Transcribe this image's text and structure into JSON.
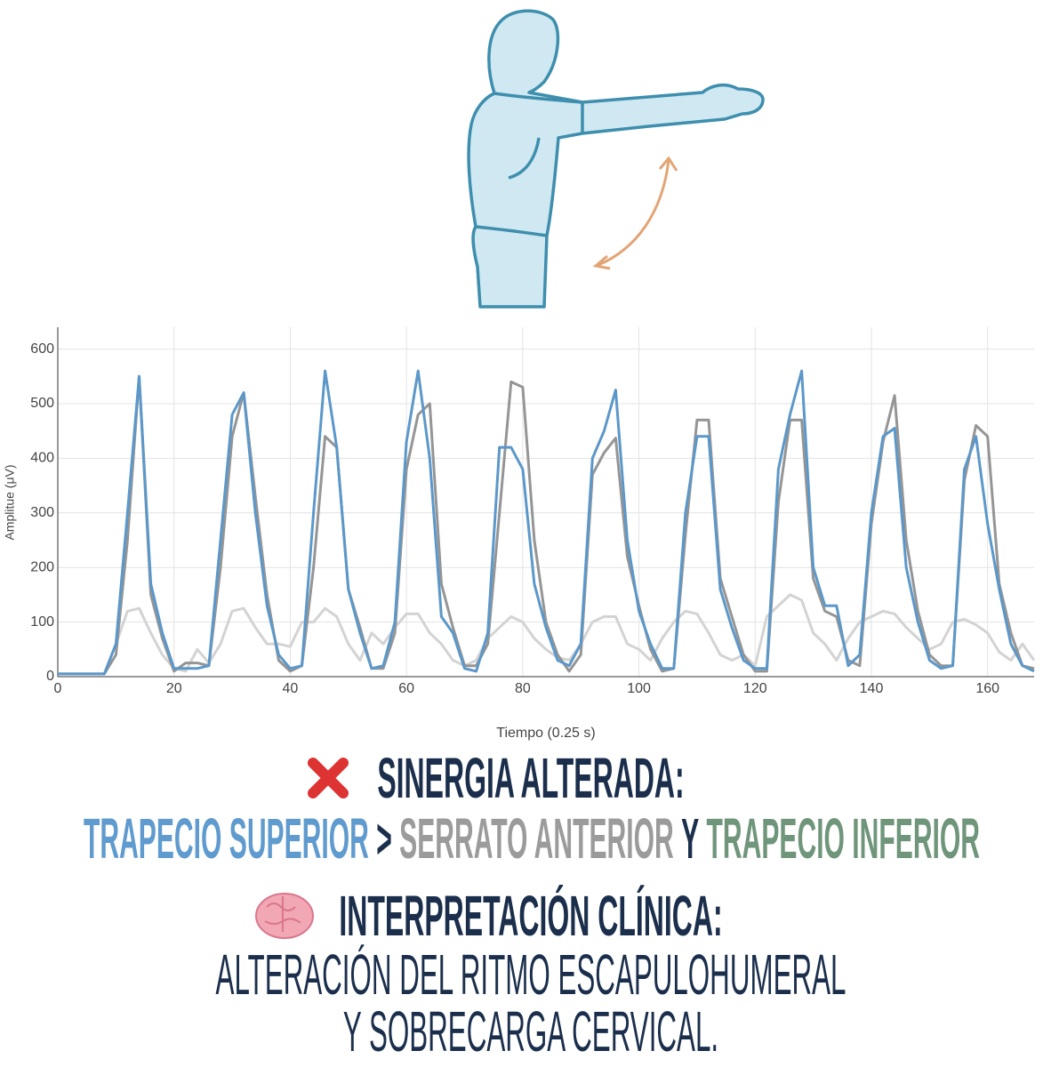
{
  "chart_data": {
    "type": "line",
    "x_label": "Tiempo (0.25 s)",
    "y_label": "Amplitue (μV)",
    "x": [
      0,
      2,
      4,
      6,
      8,
      10,
      12,
      14,
      16,
      18,
      20,
      22,
      24,
      26,
      28,
      30,
      32,
      34,
      36,
      38,
      40,
      42,
      44,
      46,
      48,
      50,
      52,
      54,
      56,
      58,
      60,
      62,
      64,
      66,
      68,
      70,
      72,
      74,
      76,
      78,
      80,
      82,
      84,
      86,
      88,
      90,
      92,
      94,
      96,
      98,
      100,
      102,
      104,
      106,
      108,
      110,
      112,
      114,
      116,
      118,
      120,
      122,
      124,
      126,
      128,
      130,
      132,
      134,
      136,
      138,
      140,
      142,
      144,
      146,
      148,
      150,
      152,
      154,
      156,
      158,
      160,
      162,
      164,
      166,
      168
    ],
    "series": [
      {
        "color": "#5b98c9",
        "values": [
          5,
          5,
          5,
          5,
          5,
          60,
          300,
          550,
          170,
          80,
          15,
          15,
          15,
          20,
          250,
          480,
          520,
          300,
          130,
          40,
          15,
          20,
          300,
          560,
          420,
          160,
          80,
          15,
          20,
          100,
          430,
          560,
          400,
          110,
          80,
          15,
          10,
          80,
          420,
          420,
          380,
          170,
          90,
          30,
          20,
          60,
          400,
          450,
          525,
          250,
          120,
          60,
          15,
          15,
          300,
          440,
          440,
          160,
          90,
          30,
          15,
          15,
          380,
          480,
          560,
          200,
          130,
          130,
          20,
          40,
          300,
          440,
          455,
          200,
          100,
          30,
          15,
          20,
          380,
          440,
          280,
          160,
          60,
          20,
          10
        ]
      },
      {
        "color": "#959595",
        "values": [
          5,
          5,
          5,
          5,
          5,
          40,
          250,
          550,
          150,
          70,
          10,
          25,
          25,
          20,
          200,
          440,
          520,
          330,
          150,
          30,
          10,
          20,
          200,
          440,
          420,
          160,
          90,
          15,
          15,
          80,
          380,
          480,
          500,
          170,
          90,
          20,
          20,
          60,
          300,
          540,
          530,
          250,
          100,
          40,
          10,
          40,
          370,
          410,
          437,
          220,
          130,
          50,
          10,
          15,
          260,
          470,
          470,
          180,
          110,
          40,
          10,
          10,
          320,
          470,
          470,
          180,
          120,
          110,
          30,
          20,
          280,
          430,
          515,
          250,
          120,
          40,
          20,
          20,
          360,
          460,
          440,
          170,
          80,
          20,
          15
        ]
      },
      {
        "color": "#d3d3d3",
        "values": [
          5,
          5,
          5,
          5,
          5,
          60,
          120,
          125,
          80,
          40,
          15,
          10,
          50,
          25,
          60,
          120,
          125,
          90,
          60,
          60,
          55,
          100,
          100,
          125,
          110,
          60,
          30,
          80,
          60,
          90,
          115,
          115,
          80,
          60,
          30,
          20,
          30,
          70,
          90,
          110,
          100,
          70,
          50,
          35,
          30,
          60,
          100,
          110,
          110,
          60,
          50,
          30,
          70,
          100,
          120,
          115,
          80,
          40,
          30,
          40,
          20,
          110,
          130,
          150,
          140,
          80,
          60,
          30,
          70,
          100,
          110,
          120,
          115,
          90,
          70,
          50,
          60,
          100,
          105,
          95,
          80,
          45,
          30,
          60,
          30
        ]
      }
    ],
    "xlim": [
      0,
      168
    ],
    "ylim": [
      0,
      640
    ],
    "xticks": [
      0,
      20,
      40,
      60,
      80,
      100,
      120,
      140,
      160
    ],
    "yticks": [
      0,
      100,
      200,
      300,
      400,
      500,
      600
    ],
    "grid": true
  },
  "text": {
    "synergy_title": "SINERGIA ALTERADA:",
    "synergy_parts": [
      "TRAPECIO SUPERIOR",
      ">",
      "SERRATO ANTERIOR",
      "Y",
      "TRAPECIO INFERIOR"
    ],
    "clinical_title": "INTERPRETACIÓN CLÍNICA:",
    "clinical_lines": [
      "ALTERACIÓN DEL RITMO ESCAPULOHUMERAL",
      "Y SOBRECARGA CERVICAL."
    ]
  }
}
